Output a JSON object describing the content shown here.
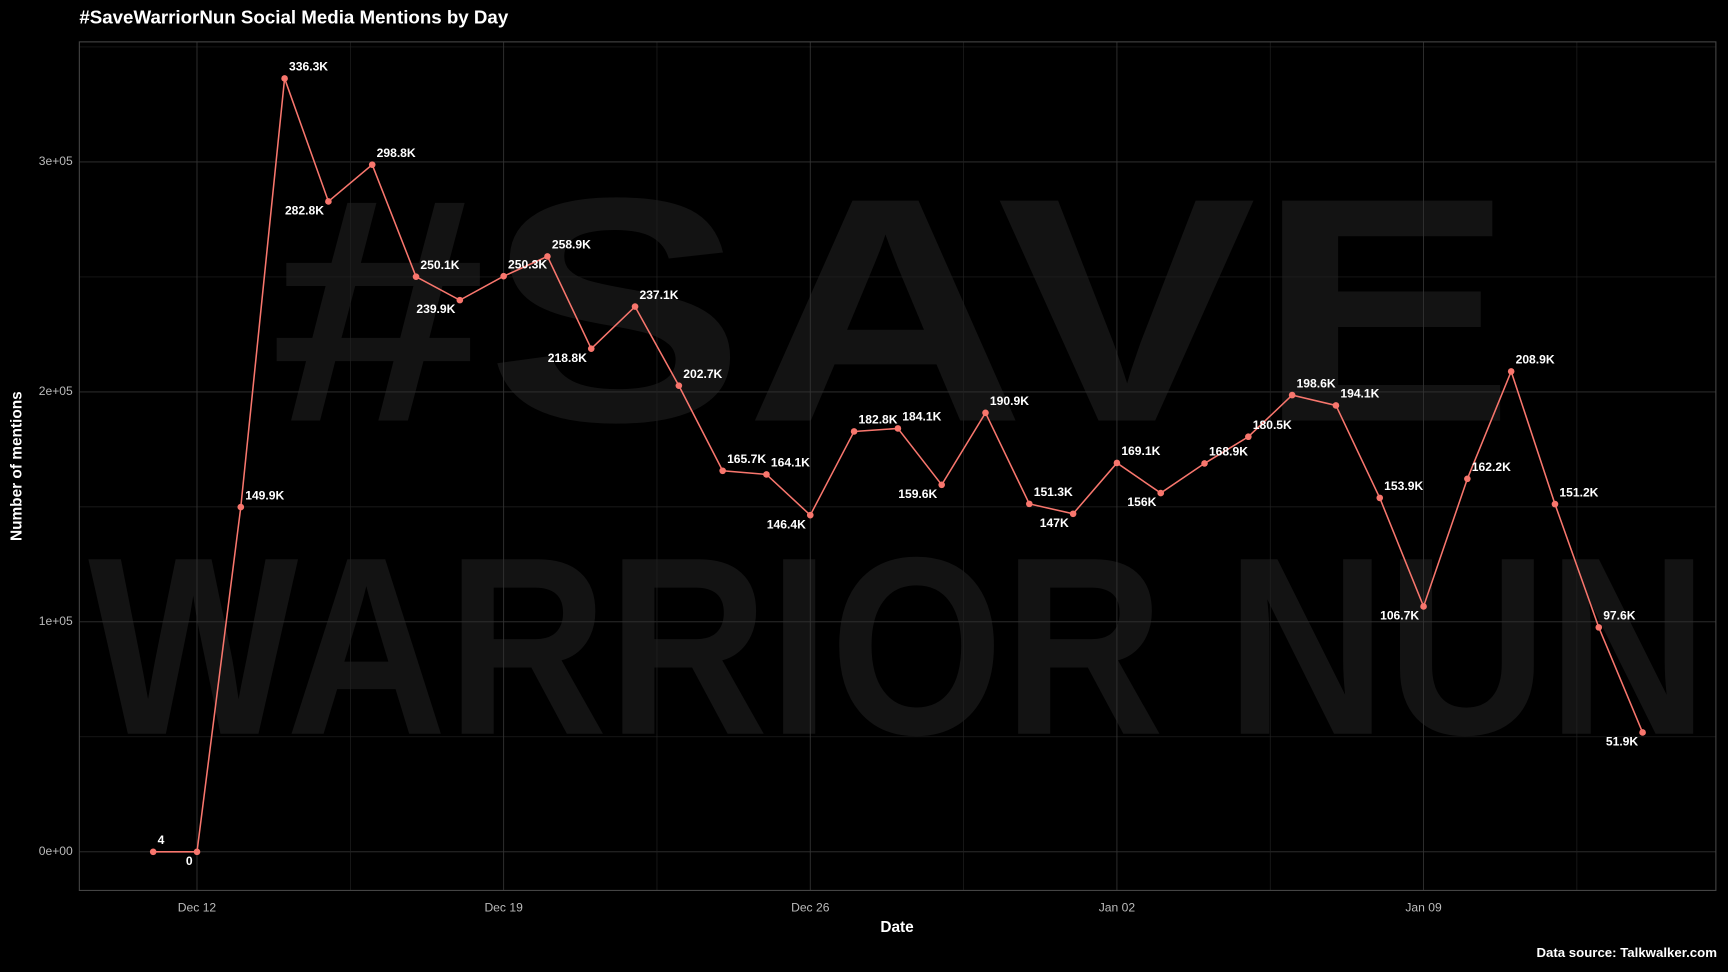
{
  "chart_data": {
    "type": "line",
    "title": "#SaveWarriorNun Social Media Mentions by Day",
    "x_label": "Date",
    "y_label": "Number of mentions",
    "caption": "Data source: Talkwalker.com",
    "watermark": [
      "#SAVE",
      "WARRIOR NUN"
    ],
    "x": [
      "Dec 11",
      "Dec 12",
      "Dec 13",
      "Dec 14",
      "Dec 15",
      "Dec 16",
      "Dec 17",
      "Dec 18",
      "Dec 19",
      "Dec 20",
      "Dec 21",
      "Dec 22",
      "Dec 23",
      "Dec 24",
      "Dec 25",
      "Dec 26",
      "Dec 27",
      "Dec 28",
      "Dec 29",
      "Dec 30",
      "Dec 31",
      "Jan 01",
      "Jan 02",
      "Jan 03",
      "Jan 04",
      "Jan 05",
      "Jan 06",
      "Jan 07",
      "Jan 08",
      "Jan 09",
      "Jan 10",
      "Jan 11",
      "Jan 12",
      "Jan 13",
      "Jan 14"
    ],
    "xticks": [
      "Dec 12",
      "Dec 19",
      "Dec 26",
      "Jan 02",
      "Jan 09"
    ],
    "series": [
      {
        "name": "Mentions",
        "color": "#f8766d",
        "values": [
          4,
          0,
          149900,
          336300,
          282800,
          298800,
          250100,
          239900,
          250300,
          258900,
          218800,
          237100,
          202700,
          165700,
          164100,
          146400,
          182800,
          184100,
          159600,
          190900,
          151300,
          147000,
          169100,
          156000,
          168900,
          180500,
          198600,
          194100,
          153900,
          106700,
          162200,
          208900,
          151200,
          97600,
          51900
        ],
        "value_labels": [
          "4",
          "0",
          "149.9K",
          "336.3K",
          "282.8K",
          "298.8K",
          "250.1K",
          "239.9K",
          "250.3K",
          "258.9K",
          "218.8K",
          "237.1K",
          "202.7K",
          "165.7K",
          "164.1K",
          "146.4K",
          "182.8K",
          "184.1K",
          "159.6K",
          "190.9K",
          "151.3K",
          "147K",
          "169.1K",
          "156K",
          "168.9K",
          "180.5K",
          "198.6K",
          "194.1K",
          "153.9K",
          "106.7K",
          "162.2K",
          "208.9K",
          "151.2K",
          "97.6K",
          "51.9K"
        ]
      }
    ],
    "ylim": [
      -16800,
      352200
    ],
    "yticks": [
      {
        "value": 0,
        "label": "0e+00"
      },
      {
        "value": 100000,
        "label": "1e+05"
      },
      {
        "value": 200000,
        "label": "2e+05"
      },
      {
        "value": 300000,
        "label": "3e+05"
      }
    ],
    "grid": true
  }
}
